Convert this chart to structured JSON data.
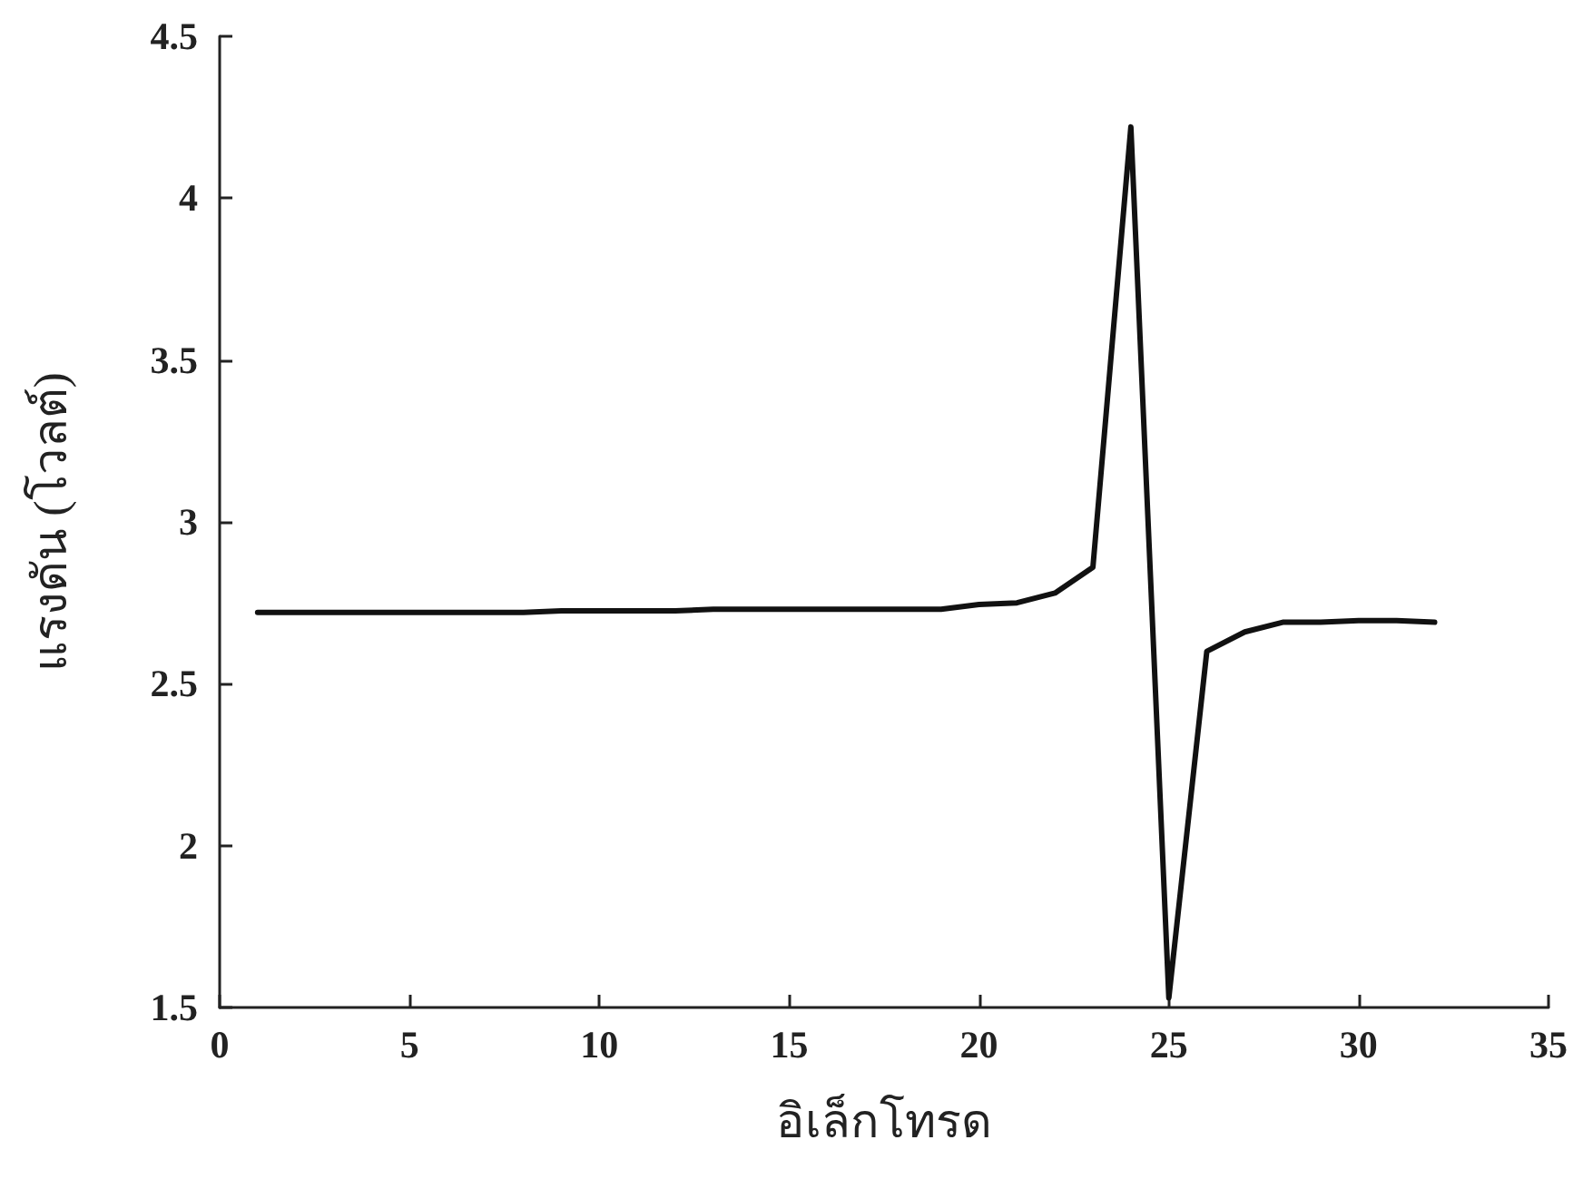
{
  "chart_data": {
    "type": "line",
    "xlabel": "อิเล็กโทรด",
    "ylabel": "แรงดัน (โวลต์)",
    "x": [
      1,
      2,
      3,
      4,
      5,
      6,
      7,
      8,
      9,
      10,
      11,
      12,
      13,
      14,
      15,
      16,
      17,
      18,
      19,
      20,
      21,
      22,
      23,
      24,
      25,
      26,
      27,
      28,
      29,
      30,
      31,
      32
    ],
    "series": [
      {
        "color": "#111111",
        "values": [
          2.72,
          2.72,
          2.72,
          2.72,
          2.72,
          2.72,
          2.72,
          2.72,
          2.725,
          2.725,
          2.725,
          2.725,
          2.73,
          2.73,
          2.73,
          2.73,
          2.73,
          2.73,
          2.73,
          2.745,
          2.75,
          2.78,
          2.86,
          4.22,
          1.53,
          2.6,
          2.66,
          2.69,
          2.69,
          2.695,
          2.695,
          2.69
        ]
      }
    ],
    "xlim": [
      0,
      35
    ],
    "xticks": [
      0,
      5,
      10,
      15,
      20,
      25,
      30,
      35
    ],
    "ylim": [
      1.5,
      4.5
    ],
    "yticks": [
      1.5,
      2,
      2.5,
      3,
      3.5,
      4,
      4.5
    ],
    "grid": false,
    "marker": "none",
    "line_style": "solid"
  }
}
